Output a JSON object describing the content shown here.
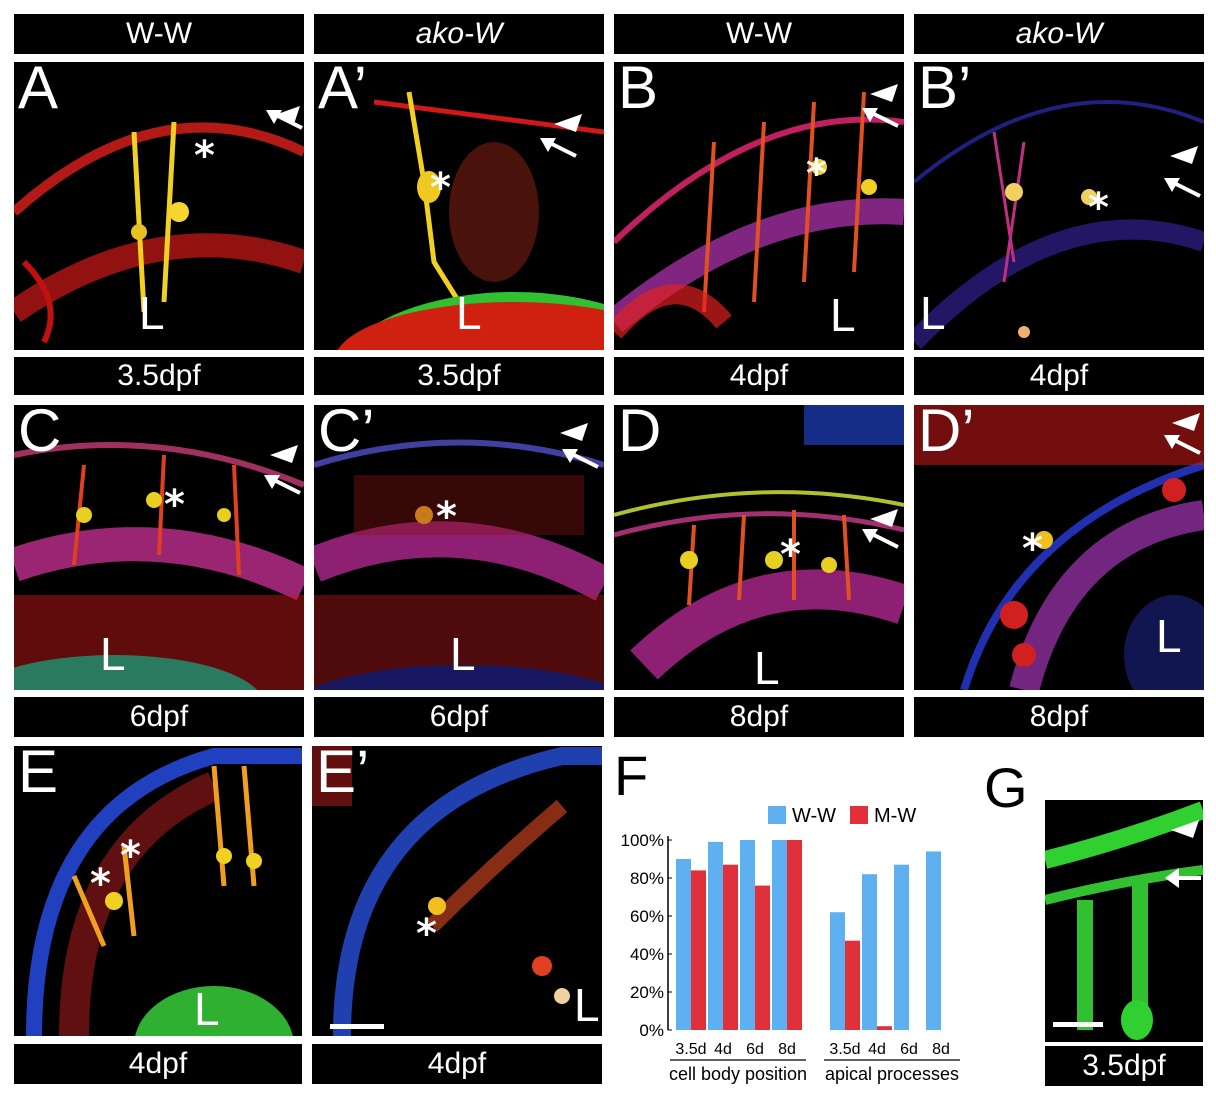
{
  "top_headers": [
    "W-W",
    "ako-W",
    "W-W",
    "ako-W"
  ],
  "panels": {
    "A": {
      "label": "A",
      "lens": "L",
      "stage": "3.5dpf"
    },
    "A2": {
      "label": "A’",
      "lens": "L",
      "stage": "3.5dpf"
    },
    "B": {
      "label": "B",
      "lens": "L",
      "stage": "4dpf"
    },
    "B2": {
      "label": "B’",
      "lens": "L",
      "stage": "4dpf"
    },
    "C": {
      "label": "C",
      "lens": "L",
      "stage": "6dpf"
    },
    "C2": {
      "label": "C’",
      "lens": "L",
      "stage": "6dpf"
    },
    "D": {
      "label": "D",
      "lens": "L",
      "stage": "8dpf"
    },
    "D2": {
      "label": "D’",
      "lens": "L",
      "stage": "8dpf"
    },
    "E": {
      "label": "E",
      "lens": "L",
      "stage": "4dpf"
    },
    "E2": {
      "label": "E’",
      "lens": "L",
      "stage": "4dpf"
    },
    "G": {
      "label": "G",
      "stage": "3.5dpf"
    }
  },
  "asterisk": "*",
  "chart_label": "F",
  "colors": {
    "ww": "#5fb0f0",
    "mw": "#e0303a"
  },
  "chart_data": {
    "type": "bar",
    "groups": [
      {
        "name": "cell body position",
        "categories": [
          "3.5d",
          "4d",
          "6d",
          "8d"
        ]
      },
      {
        "name": "apical processes",
        "categories": [
          "3.5d",
          "4d",
          "6d",
          "8d"
        ]
      }
    ],
    "series": [
      {
        "name": "W-W",
        "values": [
          90,
          99,
          100,
          100,
          62,
          82,
          87,
          94
        ]
      },
      {
        "name": "M-W",
        "values": [
          84,
          87,
          76,
          100,
          47,
          2,
          0,
          0
        ]
      }
    ],
    "y_ticks": [
      "0%",
      "20%",
      "40%",
      "60%",
      "80%",
      "100%"
    ],
    "ylim": [
      0,
      100
    ],
    "legend_position": "top"
  }
}
